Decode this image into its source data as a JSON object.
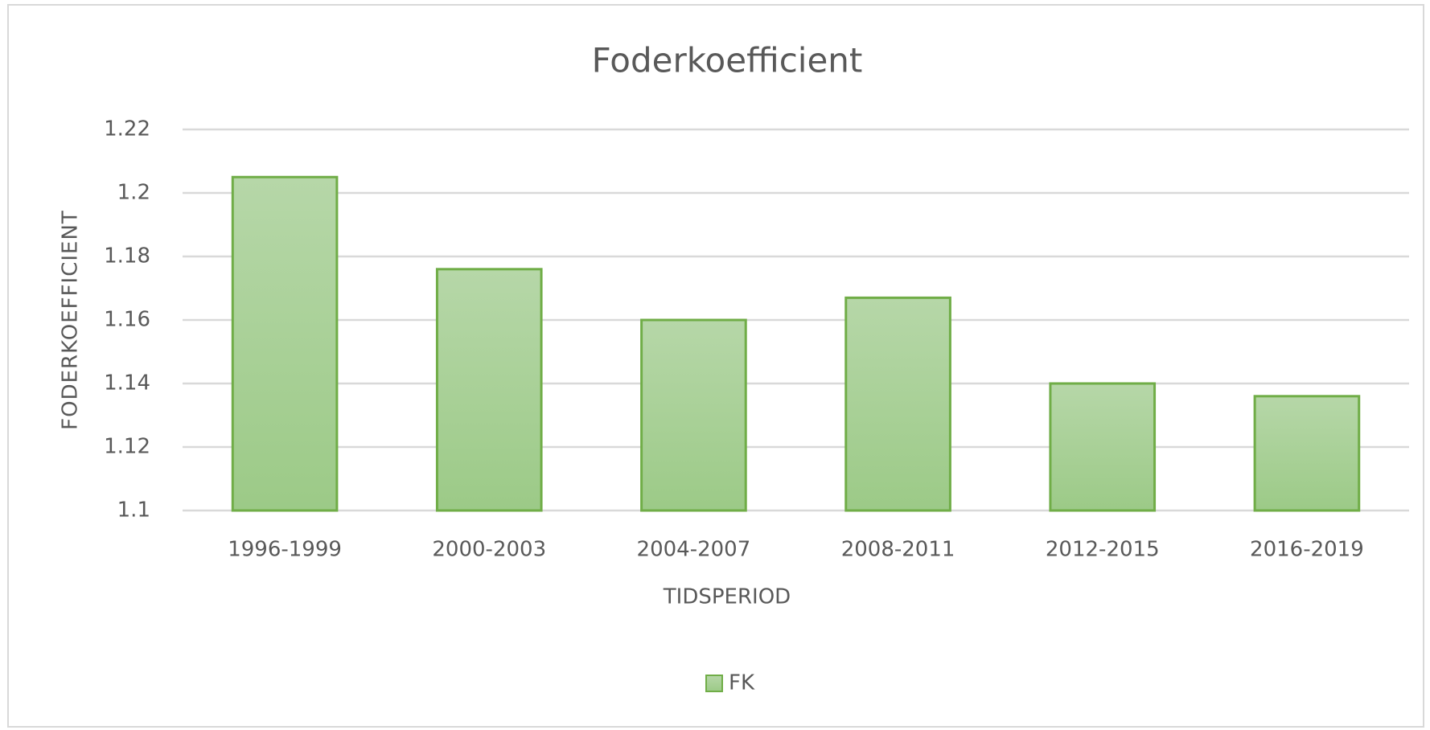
{
  "chart_data": {
    "type": "bar",
    "title": "Foderkoefficient",
    "x_label": "TIDSPERIOD",
    "y_label": "FODERKOEFFICIENT",
    "categories": [
      "1996-1999",
      "2000-2003",
      "2004-2007",
      "2008-2011",
      "2012-2015",
      "2016-2019"
    ],
    "series": [
      {
        "name": "FK",
        "color": "#70ad47",
        "values": [
          1.205,
          1.176,
          1.16,
          1.167,
          1.14,
          1.136
        ]
      }
    ],
    "ylim": [
      1.1,
      1.22
    ],
    "yticks": [
      1.1,
      1.12,
      1.14,
      1.16,
      1.18,
      1.2,
      1.22
    ],
    "grid": true,
    "legend": "bottom"
  }
}
